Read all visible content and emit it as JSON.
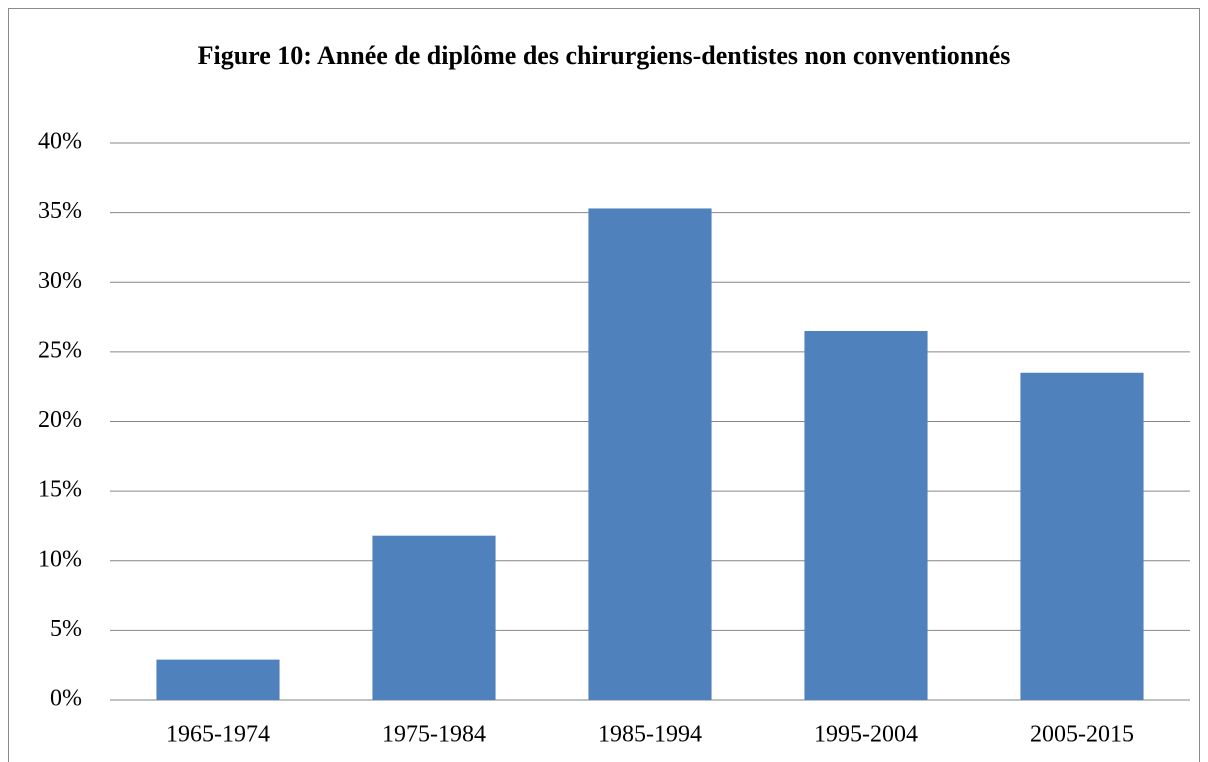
{
  "chart_data": {
    "type": "bar",
    "title": "Figure 10: Année de diplôme des chirurgiens-dentistes non conventionnés",
    "categories": [
      "1965-1974",
      "1975-1984",
      "1985-1994",
      "1995-2004",
      "2005-2015"
    ],
    "values": [
      2.9,
      11.8,
      35.3,
      26.5,
      23.5
    ],
    "color": "#4f81bd",
    "ylim": [
      0,
      40
    ],
    "yticks": [
      {
        "value": 0,
        "label": "0%"
      },
      {
        "value": 5,
        "label": "5%"
      },
      {
        "value": 10,
        "label": "10%"
      },
      {
        "value": 15,
        "label": "15%"
      },
      {
        "value": 20,
        "label": "20%"
      },
      {
        "value": 25,
        "label": "25%"
      },
      {
        "value": 30,
        "label": "30%"
      },
      {
        "value": 35,
        "label": "35%"
      },
      {
        "value": 40,
        "label": "40%"
      }
    ],
    "grid": true
  }
}
